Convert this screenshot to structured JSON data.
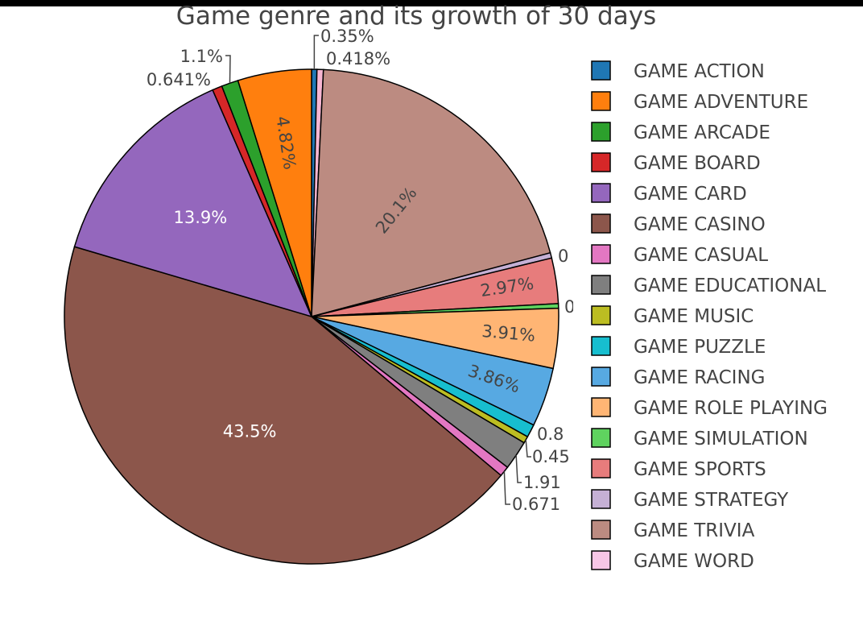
{
  "chart_data": {
    "type": "pie",
    "title": "Game genre and its growth of 30 days",
    "legend_position": "right",
    "slices": [
      {
        "label": "GAME ACTION",
        "value": 0.35,
        "text": "0.35%",
        "color": "#1f77b4"
      },
      {
        "label": "GAME WORD",
        "value": 0.418,
        "text": "0.418%",
        "color": "#f7b6d2"
      },
      {
        "label": "GAME TRIVIA",
        "value": 20.1,
        "text": "20.1%",
        "color": "#bc8b81"
      },
      {
        "label": "GAME STRATEGY",
        "value": 0.35,
        "text": "0",
        "color": "#c5b0d5"
      },
      {
        "label": "GAME SPORTS",
        "value": 2.97,
        "text": "2.97%",
        "color": "#e77c7c"
      },
      {
        "label": "GAME SIMULATION",
        "value": 0.3,
        "text": "0",
        "color": "#5fd35f"
      },
      {
        "label": "GAME ROLE PLAYING",
        "value": 3.91,
        "text": "3.91%",
        "color": "#ffb574"
      },
      {
        "label": "GAME RACING",
        "value": 3.86,
        "text": "3.86%",
        "color": "#57a9e2"
      },
      {
        "label": "GAME PUZZLE",
        "value": 0.85,
        "text": "0.8",
        "color": "#17becf"
      },
      {
        "label": "GAME MUSIC",
        "value": 0.45,
        "text": "0.45",
        "color": "#bcbd22"
      },
      {
        "label": "GAME EDUCATIONAL",
        "value": 1.91,
        "text": "1.91",
        "color": "#7f7f7f"
      },
      {
        "label": "GAME CASUAL",
        "value": 0.671,
        "text": "0.671",
        "color": "#e377c2"
      },
      {
        "label": "GAME CASINO",
        "value": 43.5,
        "text": "43.5%",
        "color": "#8c564b"
      },
      {
        "label": "GAME CARD",
        "value": 13.9,
        "text": "13.9%",
        "color": "#9467bd"
      },
      {
        "label": "GAME BOARD",
        "value": 0.641,
        "text": "0.641%",
        "color": "#d62728"
      },
      {
        "label": "GAME ARCADE",
        "value": 1.1,
        "text": "1.1%",
        "color": "#2ca02c"
      },
      {
        "label": "GAME ADVENTURE",
        "value": 4.82,
        "text": "4.82%",
        "color": "#ff7f0e"
      }
    ],
    "legend": [
      {
        "label": "GAME ACTION",
        "color": "#1f77b4"
      },
      {
        "label": "GAME ADVENTURE",
        "color": "#ff7f0e"
      },
      {
        "label": "GAME ARCADE",
        "color": "#2ca02c"
      },
      {
        "label": "GAME BOARD",
        "color": "#d62728"
      },
      {
        "label": "GAME CARD",
        "color": "#9467bd"
      },
      {
        "label": "GAME CASINO",
        "color": "#8c564b"
      },
      {
        "label": "GAME CASUAL",
        "color": "#e377c2"
      },
      {
        "label": "GAME EDUCATIONAL",
        "color": "#7f7f7f"
      },
      {
        "label": "GAME MUSIC",
        "color": "#bcbd22"
      },
      {
        "label": "GAME PUZZLE",
        "color": "#17becf"
      },
      {
        "label": "GAME RACING",
        "color": "#57a9e2"
      },
      {
        "label": "GAME ROLE PLAYING",
        "color": "#ffb574"
      },
      {
        "label": "GAME SIMULATION",
        "color": "#5fd35f"
      },
      {
        "label": "GAME SPORTS",
        "color": "#e77c7c"
      },
      {
        "label": "GAME STRATEGY",
        "color": "#c5b0d5"
      },
      {
        "label": "GAME TRIVIA",
        "color": "#bc8b81"
      },
      {
        "label": "GAME WORD",
        "color": "#f7c6e6"
      }
    ]
  }
}
